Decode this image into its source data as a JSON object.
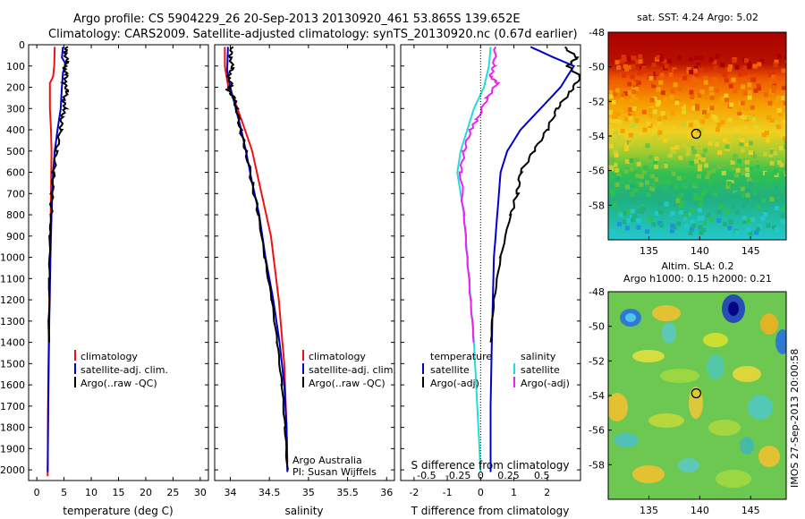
{
  "header": {
    "title_line1": "Argo profile: CS 5904229_26 20-Sep-2013 20130920_461 53.865S 139.652E",
    "title_line2": "Climatology: CARS2009. Satellite-adjusted climatology: synTS_20130920.nc (0.67d earlier)"
  },
  "side_label": "IMOS 27-Sep-2013 20:00:58",
  "colors": {
    "climatology": "#ee1111",
    "satellite": "#0000cc",
    "argo": "#000000",
    "salinity_satellite": "#22dddd",
    "salinity_argo": "#ee22ee"
  },
  "chart_data": [
    {
      "type": "line",
      "id": "temperature",
      "xlabel": "temperature (deg C)",
      "ylabel": "",
      "xlim": [
        -1.5,
        31.5
      ],
      "ylim": [
        2050,
        0
      ],
      "xticks": [
        0,
        5,
        10,
        15,
        20,
        25,
        30
      ],
      "yticks": [
        0,
        100,
        200,
        300,
        400,
        500,
        600,
        700,
        800,
        900,
        1000,
        1100,
        1200,
        1300,
        1400,
        1500,
        1600,
        1700,
        1800,
        1900,
        2000
      ],
      "legend": [
        "climatology",
        "satellite-adj. clim.",
        "Argo(..raw -QC)"
      ],
      "series": [
        {
          "name": "climatology",
          "color": "#ee1111",
          "points": [
            [
              3.3,
              10
            ],
            [
              3.2,
              100
            ],
            [
              3.0,
              150
            ],
            [
              2.4,
              180
            ],
            [
              2.4,
              300
            ],
            [
              2.6,
              400
            ],
            [
              2.7,
              500
            ],
            [
              2.6,
              700
            ],
            [
              2.5,
              900
            ],
            [
              2.3,
              1200
            ],
            [
              2.1,
              1600
            ],
            [
              2.0,
              2030
            ]
          ]
        },
        {
          "name": "satellite-adj. clim.",
          "color": "#0000cc",
          "points": [
            [
              4.8,
              10
            ],
            [
              4.6,
              60
            ],
            [
              5.3,
              90
            ],
            [
              4.8,
              130
            ],
            [
              4.6,
              200
            ],
            [
              4.4,
              300
            ],
            [
              3.8,
              400
            ],
            [
              3.3,
              500
            ],
            [
              3.0,
              600
            ],
            [
              2.7,
              800
            ],
            [
              2.5,
              1000
            ],
            [
              2.3,
              1300
            ],
            [
              2.1,
              1700
            ],
            [
              2.0,
              2010
            ]
          ]
        },
        {
          "name": "Argo(..raw -QC)",
          "color": "#000000",
          "points": [
            [
              5.5,
              10
            ],
            [
              5.2,
              40
            ],
            [
              5.6,
              80
            ],
            [
              5.0,
              110
            ],
            [
              5.5,
              140
            ],
            [
              5.1,
              180
            ],
            [
              5.6,
              220
            ],
            [
              4.9,
              260
            ],
            [
              5.2,
              300
            ],
            [
              4.6,
              340
            ],
            [
              4.4,
              400
            ],
            [
              3.6,
              500
            ],
            [
              3.1,
              600
            ],
            [
              2.8,
              700
            ],
            [
              2.6,
              800
            ],
            [
              2.4,
              900
            ],
            [
              2.3,
              1100
            ],
            [
              2.2,
              1400
            ]
          ]
        }
      ]
    },
    {
      "type": "line",
      "id": "salinity",
      "xlabel": "salinity",
      "ylabel": "",
      "xlim": [
        33.8,
        36.1
      ],
      "ylim": [
        2050,
        0
      ],
      "xticks": [
        34,
        34.5,
        35,
        35.5,
        36
      ],
      "legend": [
        "climatology",
        "satellite-adj. clim.",
        "Argo(..raw -QC)"
      ],
      "annotations": [
        "Argo Australia",
        "PI: Susan Wijffels"
      ],
      "series": [
        {
          "name": "climatology",
          "color": "#ee1111",
          "points": [
            [
              33.93,
              10
            ],
            [
              33.93,
              100
            ],
            [
              33.97,
              190
            ],
            [
              34.05,
              260
            ],
            [
              34.15,
              360
            ],
            [
              34.28,
              500
            ],
            [
              34.4,
              700
            ],
            [
              34.52,
              900
            ],
            [
              34.62,
              1200
            ],
            [
              34.69,
              1500
            ],
            [
              34.72,
              1800
            ],
            [
              34.73,
              1960
            ]
          ]
        },
        {
          "name": "satellite-adj. clim.",
          "color": "#0000cc",
          "points": [
            [
              33.97,
              10
            ],
            [
              33.96,
              120
            ],
            [
              34.0,
              200
            ],
            [
              34.07,
              300
            ],
            [
              34.14,
              400
            ],
            [
              34.2,
              500
            ],
            [
              34.28,
              650
            ],
            [
              34.37,
              800
            ],
            [
              34.45,
              1000
            ],
            [
              34.55,
              1200
            ],
            [
              34.63,
              1400
            ],
            [
              34.69,
              1600
            ],
            [
              34.72,
              1800
            ],
            [
              34.73,
              2010
            ]
          ]
        },
        {
          "name": "Argo(..raw -QC)",
          "color": "#000000",
          "points": [
            [
              34.02,
              10
            ],
            [
              34.0,
              60
            ],
            [
              34.03,
              110
            ],
            [
              33.97,
              150
            ],
            [
              34.02,
              190
            ],
            [
              33.96,
              210
            ],
            [
              34.05,
              250
            ],
            [
              34.08,
              300
            ],
            [
              34.13,
              400
            ],
            [
              34.2,
              500
            ],
            [
              34.28,
              650
            ],
            [
              34.36,
              800
            ],
            [
              34.44,
              1000
            ],
            [
              34.53,
              1200
            ],
            [
              34.6,
              1400
            ],
            [
              34.66,
              1600
            ],
            [
              34.7,
              1800
            ],
            [
              34.73,
              2000
            ]
          ]
        }
      ]
    },
    {
      "type": "line",
      "id": "difference",
      "xlabel": "T difference from climatology",
      "xlabel_top": "S difference from climatology",
      "ylabel": "",
      "xlim": [
        -2.4,
        3.0
      ],
      "ylim": [
        2050,
        0
      ],
      "xticks": [
        -2,
        -1,
        0,
        1,
        2
      ],
      "xticks_top": [
        -0.5,
        -0.25,
        0,
        0.25,
        0.5
      ],
      "legend_temperature_title": "temperature",
      "legend_salinity_title": "salinity",
      "legend": [
        "satellite",
        "Argo(-adj)",
        "satellite",
        "Argo(-adj)"
      ],
      "series": [
        {
          "name": "temperature satellite",
          "color": "#0000cc",
          "points": [
            [
              1.5,
              10
            ],
            [
              2.2,
              60
            ],
            [
              2.8,
              100
            ],
            [
              2.4,
              200
            ],
            [
              1.8,
              300
            ],
            [
              1.2,
              400
            ],
            [
              0.8,
              500
            ],
            [
              0.6,
              600
            ],
            [
              0.5,
              800
            ],
            [
              0.4,
              1000
            ],
            [
              0.35,
              1300
            ],
            [
              0.3,
              1700
            ],
            [
              0.3,
              2010
            ]
          ]
        },
        {
          "name": "temperature Argo(-adj)",
          "color": "#000000",
          "points": [
            [
              2.5,
              10
            ],
            [
              2.9,
              60
            ],
            [
              2.6,
              100
            ],
            [
              3.0,
              150
            ],
            [
              2.7,
              220
            ],
            [
              2.3,
              300
            ],
            [
              2.0,
              400
            ],
            [
              1.6,
              500
            ],
            [
              1.2,
              600
            ],
            [
              1.1,
              700
            ],
            [
              0.9,
              800
            ],
            [
              0.6,
              1000
            ],
            [
              0.4,
              1200
            ],
            [
              0.3,
              1400
            ]
          ]
        },
        {
          "name": "salinity satellite",
          "color": "#22dddd",
          "points": [
            [
              0.3,
              10
            ],
            [
              0.25,
              100
            ],
            [
              0.1,
              200
            ],
            [
              -0.2,
              300
            ],
            [
              -0.4,
              400
            ],
            [
              -0.6,
              500
            ],
            [
              -0.7,
              600
            ],
            [
              -0.6,
              700
            ],
            [
              -0.5,
              800
            ],
            [
              -0.4,
              1000
            ],
            [
              -0.3,
              1200
            ],
            [
              -0.2,
              1400
            ],
            [
              -0.1,
              1700
            ],
            [
              0.0,
              2010
            ]
          ]
        },
        {
          "name": "salinity Argo(-adj)",
          "color": "#ee22ee",
          "points": [
            [
              0.45,
              10
            ],
            [
              0.4,
              100
            ],
            [
              0.3,
              150
            ],
            [
              0.5,
              180
            ],
            [
              0.2,
              250
            ],
            [
              -0.1,
              350
            ],
            [
              -0.3,
              400
            ],
            [
              -0.5,
              500
            ],
            [
              -0.6,
              600
            ],
            [
              -0.5,
              800
            ],
            [
              -0.4,
              1000
            ],
            [
              -0.3,
              1200
            ],
            [
              -0.2,
              1400
            ]
          ]
        }
      ]
    },
    {
      "type": "heatmap",
      "id": "sst_map",
      "title": "sat. SST: 4.24  Argo: 5.02",
      "xlim": [
        131,
        148.5
      ],
      "ylim": [
        -60,
        -48
      ],
      "xticks": [
        135,
        140,
        145
      ],
      "yticks": [
        -48,
        -50,
        -52,
        -54,
        -56,
        -58
      ],
      "marker": [
        139.65,
        -53.87
      ]
    },
    {
      "type": "heatmap",
      "id": "sla_map",
      "title_line1": "Altim. SLA: 0.2",
      "title_line2": "Argo h1000: 0.15 h2000: 0.21",
      "xlim": [
        131,
        148.5
      ],
      "ylim": [
        -60,
        -48
      ],
      "xticks": [
        135,
        140,
        145
      ],
      "yticks": [
        -48,
        -50,
        -52,
        -54,
        -56,
        -58
      ],
      "marker": [
        139.65,
        -53.87
      ]
    }
  ]
}
